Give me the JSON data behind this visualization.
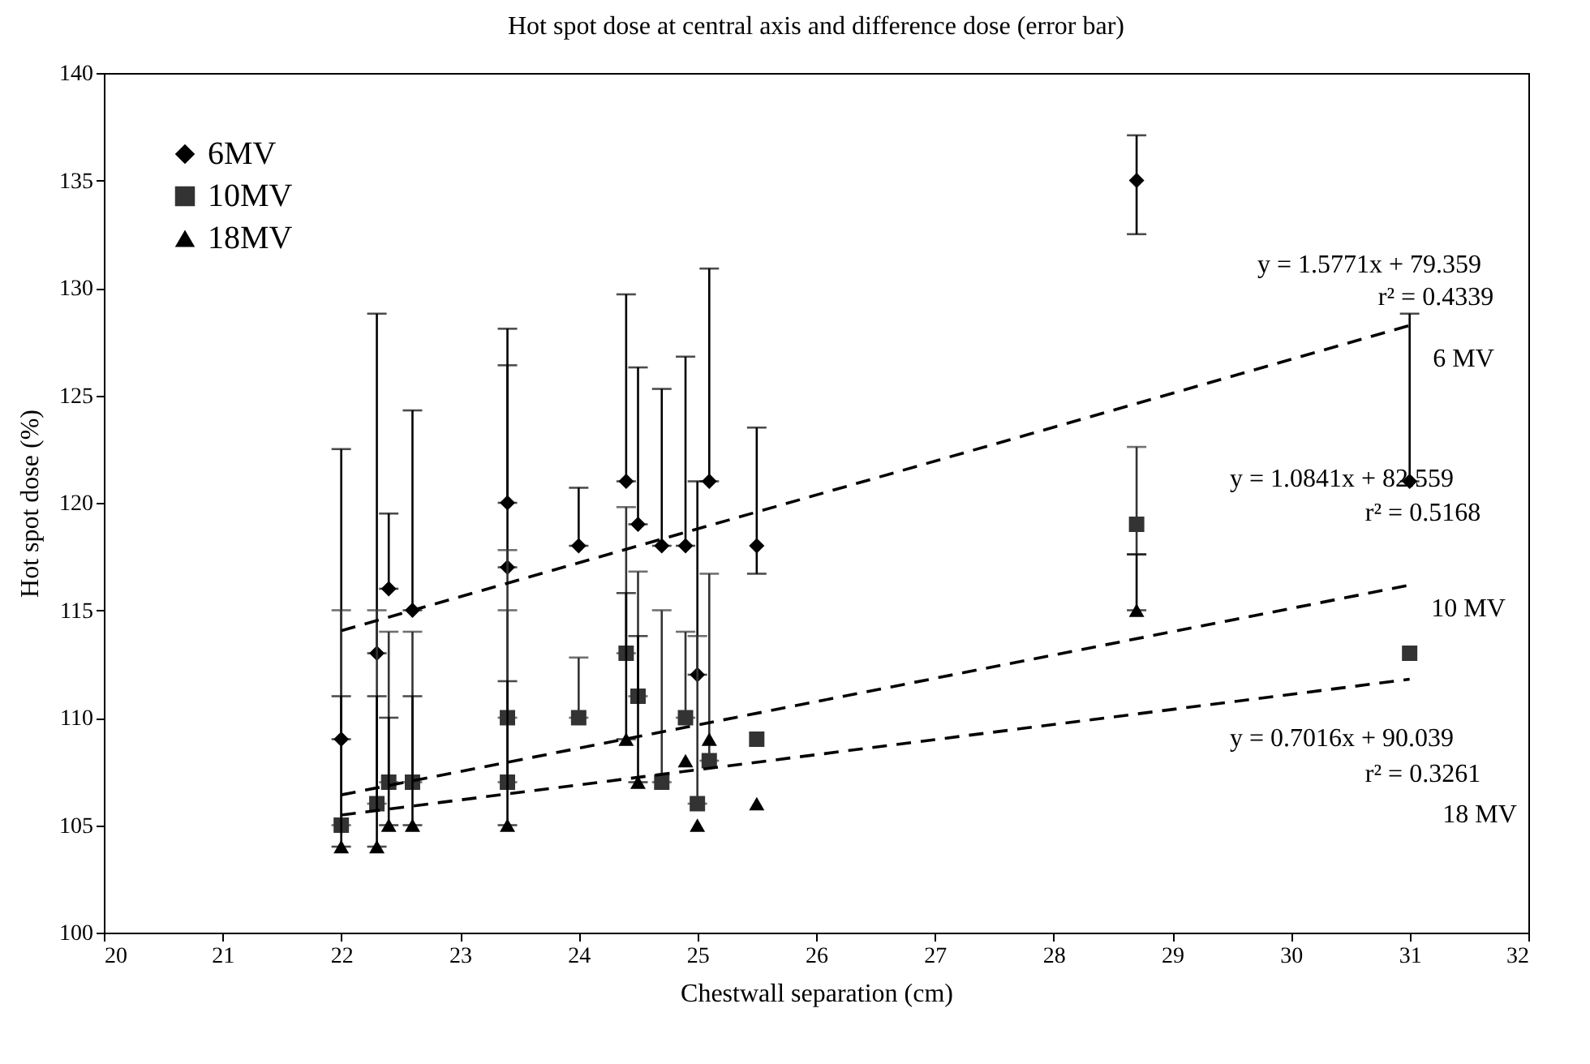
{
  "chart_data": {
    "type": "scatter",
    "title": "Hot spot dose at central axis and difference dose (error bar)",
    "xlabel": "Chestwall separation (cm)",
    "ylabel": "Hot spot dose (%)",
    "xlim": [
      20,
      32
    ],
    "xticks": [
      20,
      21,
      22,
      23,
      24,
      25,
      26,
      27,
      28,
      29,
      30,
      31,
      32
    ],
    "ylim": [
      100,
      140
    ],
    "yticks": [
      100,
      105,
      110,
      115,
      120,
      125,
      130,
      135,
      140
    ],
    "grid": false,
    "legend": "top left",
    "series": [
      {
        "name": "6MV",
        "color": "#000000",
        "marker": "diamond",
        "x": [
          22,
          22.3,
          22.4,
          22.6,
          23.4,
          23.4,
          24,
          24.4,
          24.5,
          24.7,
          24.9,
          25,
          25.1,
          25.5,
          28.7,
          31
        ],
        "values": [
          109,
          113,
          116,
          115,
          120,
          117,
          118,
          121,
          119,
          118,
          118,
          112,
          121,
          118,
          135,
          121
        ],
        "errors": [
          [
            109,
            122.5
          ],
          [
            113,
            128.8
          ],
          [
            116,
            119.5
          ],
          [
            115,
            124.3
          ],
          [
            120,
            128.1
          ],
          [
            117,
            126.4
          ],
          [
            118,
            120.7
          ],
          [
            121,
            129.7
          ],
          [
            119,
            126.3
          ],
          [
            118,
            125.3
          ],
          [
            118,
            126.8
          ],
          [
            112,
            121
          ],
          [
            121,
            130.9
          ],
          [
            116.7,
            123.5
          ],
          [
            132.5,
            137.1
          ],
          [
            121,
            128.8
          ]
        ]
      },
      {
        "name": "10MV",
        "color": "#333333",
        "marker": "square",
        "x": [
          22,
          22.3,
          22.4,
          22.6,
          23.4,
          23.4,
          24,
          24.4,
          24.5,
          24.7,
          24.9,
          25,
          25.1,
          25.5,
          28.7,
          31
        ],
        "values": [
          105,
          106,
          107,
          107,
          110,
          107,
          110,
          113,
          111,
          107,
          110,
          106,
          108,
          109,
          119,
          113
        ],
        "errors": [
          [
            105,
            115
          ],
          [
            106,
            115
          ],
          [
            107,
            114
          ],
          [
            107,
            114
          ],
          [
            110,
            117.8
          ],
          [
            107,
            115
          ],
          [
            110,
            112.8
          ],
          [
            113,
            119.8
          ],
          [
            111,
            116.8
          ],
          [
            107,
            115
          ],
          [
            110,
            114
          ],
          [
            106,
            113.8
          ],
          [
            108,
            116.7
          ],
          null,
          [
            117.6,
            122.6
          ],
          null
        ]
      },
      {
        "name": "18MV",
        "color": "#000000",
        "marker": "triangle",
        "x": [
          22,
          22.3,
          22.4,
          22.6,
          23.4,
          24.4,
          24.5,
          24.9,
          25,
          25.1,
          25.5,
          28.7
        ],
        "values": [
          104,
          104,
          105,
          105,
          105,
          109,
          107,
          108,
          105,
          109,
          106,
          115
        ],
        "errors": [
          [
            104,
            111
          ],
          [
            104,
            111
          ],
          [
            105,
            110
          ],
          [
            105,
            111
          ],
          [
            105,
            111.7
          ],
          [
            109,
            115.8
          ],
          [
            107,
            113.8
          ],
          null,
          null,
          null,
          null,
          [
            115,
            117.6
          ]
        ]
      },
      {
        "type": "line",
        "color": "#000000",
        "line_style": "dashed",
        "x": [
          22,
          31
        ],
        "values": [
          114.05,
          128.25
        ]
      },
      {
        "type": "line",
        "color": "#000000",
        "line_style": "dashed",
        "x": [
          22,
          31
        ],
        "values": [
          106.41,
          116.17
        ]
      },
      {
        "type": "line",
        "color": "#000000",
        "line_style": "dashed",
        "x": [
          22,
          31
        ],
        "values": [
          105.47,
          111.79
        ]
      }
    ],
    "annotations": [
      "y = 1.5771x + 79.359",
      "r² = 0.4339",
      "6 MV",
      "y = 1.0841x + 82.559",
      "r² = 0.5168",
      "10 MV",
      "y = 0.7016x + 90.039",
      "r² = 0.3261",
      "18 MV"
    ]
  }
}
